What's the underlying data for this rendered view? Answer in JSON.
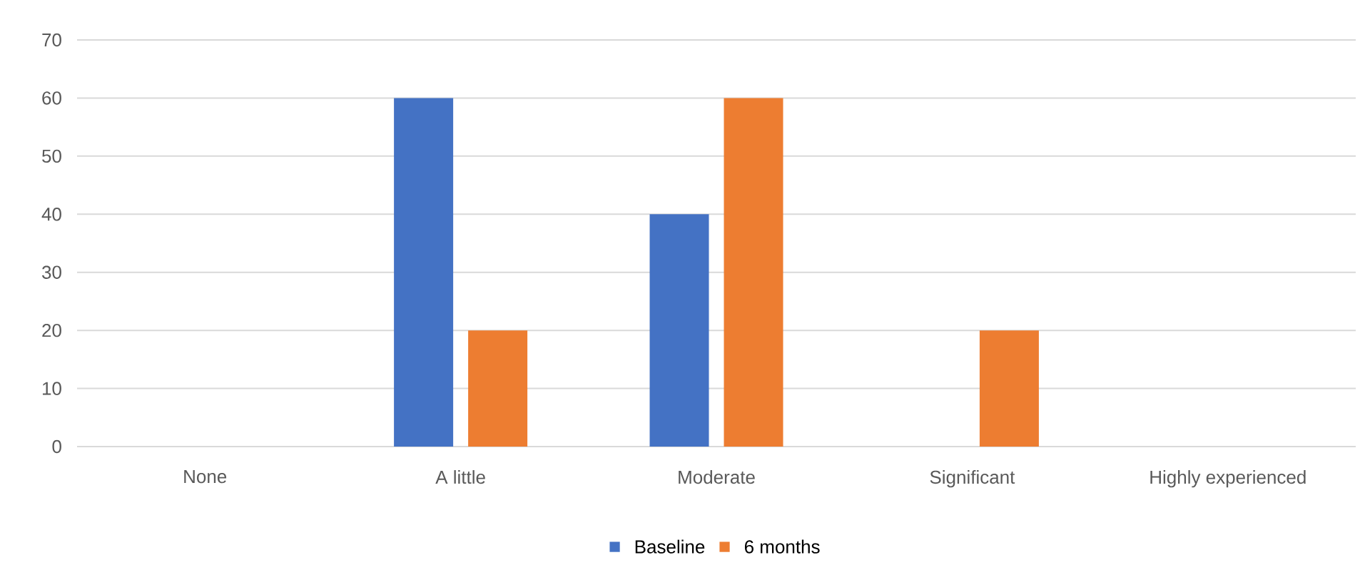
{
  "chart_data": {
    "type": "bar",
    "categories": [
      "None",
      "A little",
      "Moderate",
      "Significant",
      "Highly experienced"
    ],
    "series": [
      {
        "name": "Baseline",
        "color": "#4472c4",
        "values": [
          0,
          60,
          40,
          0,
          0
        ]
      },
      {
        "name": "6 months",
        "color": "#ed7d31",
        "values": [
          0,
          20,
          60,
          20,
          0
        ]
      }
    ],
    "ylim": [
      0,
      70
    ],
    "yticks": [
      0,
      10,
      20,
      30,
      40,
      50,
      60,
      70
    ],
    "grid": "y",
    "legend": "bottom"
  }
}
